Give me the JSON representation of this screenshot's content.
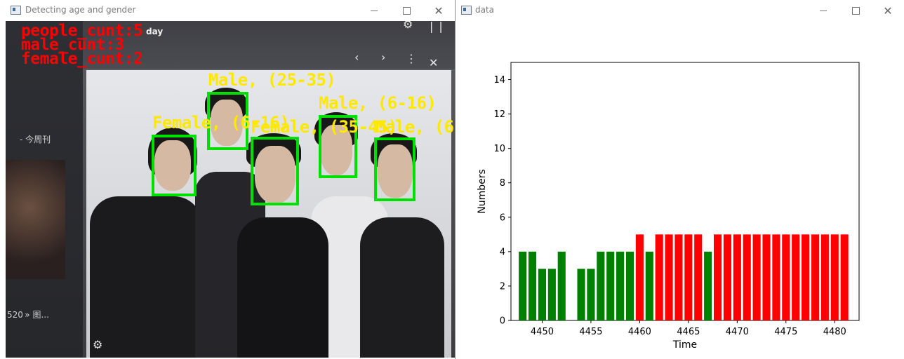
{
  "left_window": {
    "title": "Detecting age and gender",
    "counts": [
      "people_cunt:5",
      "male_cunt:3",
      "female_cunt:2"
    ],
    "detections": [
      {
        "label": "Male, (25-35)"
      },
      {
        "label": "Female, (6-16)"
      },
      {
        "label": "Female, (35-45)"
      },
      {
        "label": "Male, (6-16)"
      },
      {
        "label": "Male, (6-"
      }
    ],
    "photo_text": {
      "top_right": "day",
      "left_caption": "- 今周刊",
      "left_bottom": "520 » 图..."
    }
  },
  "right_window": {
    "title": "data"
  },
  "colors": {
    "male_bar": "#008000",
    "female_bar": "#ff0000",
    "detection_box": "#00e000",
    "detection_label": "#ffe800",
    "count_text": "#ff0000"
  },
  "chart_data": {
    "type": "bar",
    "xlabel": "Time",
    "ylabel": "Numbers",
    "ylim": [
      0,
      15
    ],
    "xlim": [
      4446.8,
      4482.5
    ],
    "yticks": [
      0,
      2,
      4,
      6,
      8,
      10,
      12,
      14
    ],
    "xticks": [
      4450,
      4455,
      4460,
      4465,
      4470,
      4475,
      4480
    ],
    "grid": false,
    "bars": [
      {
        "x": 4448,
        "value": 4,
        "color": "green"
      },
      {
        "x": 4449,
        "value": 4,
        "color": "green"
      },
      {
        "x": 4450,
        "value": 3,
        "color": "green"
      },
      {
        "x": 4451,
        "value": 3,
        "color": "green"
      },
      {
        "x": 4452,
        "value": 4,
        "color": "green"
      },
      {
        "x": 4454,
        "value": 3,
        "color": "green"
      },
      {
        "x": 4455,
        "value": 3,
        "color": "green"
      },
      {
        "x": 4456,
        "value": 4,
        "color": "green"
      },
      {
        "x": 4457,
        "value": 4,
        "color": "green"
      },
      {
        "x": 4458,
        "value": 4,
        "color": "green"
      },
      {
        "x": 4459,
        "value": 4,
        "color": "green"
      },
      {
        "x": 4460,
        "value": 5,
        "color": "red"
      },
      {
        "x": 4461,
        "value": 4,
        "color": "green"
      },
      {
        "x": 4462,
        "value": 5,
        "color": "red"
      },
      {
        "x": 4463,
        "value": 5,
        "color": "red"
      },
      {
        "x": 4464,
        "value": 5,
        "color": "red"
      },
      {
        "x": 4465,
        "value": 5,
        "color": "red"
      },
      {
        "x": 4466,
        "value": 5,
        "color": "red"
      },
      {
        "x": 4467,
        "value": 4,
        "color": "green"
      },
      {
        "x": 4468,
        "value": 5,
        "color": "red"
      },
      {
        "x": 4469,
        "value": 5,
        "color": "red"
      },
      {
        "x": 4470,
        "value": 5,
        "color": "red"
      },
      {
        "x": 4471,
        "value": 5,
        "color": "red"
      },
      {
        "x": 4472,
        "value": 5,
        "color": "red"
      },
      {
        "x": 4473,
        "value": 5,
        "color": "red"
      },
      {
        "x": 4474,
        "value": 5,
        "color": "red"
      },
      {
        "x": 4475,
        "value": 5,
        "color": "red"
      },
      {
        "x": 4476,
        "value": 5,
        "color": "red"
      },
      {
        "x": 4477,
        "value": 5,
        "color": "red"
      },
      {
        "x": 4478,
        "value": 5,
        "color": "red"
      },
      {
        "x": 4479,
        "value": 5,
        "color": "red"
      },
      {
        "x": 4480,
        "value": 5,
        "color": "red"
      },
      {
        "x": 4481,
        "value": 5,
        "color": "red"
      }
    ]
  }
}
